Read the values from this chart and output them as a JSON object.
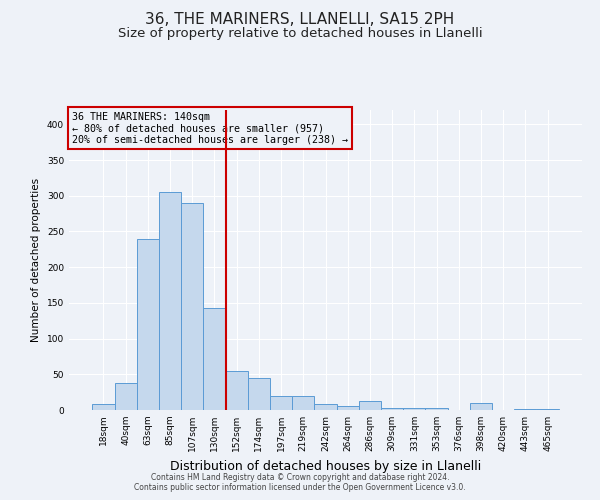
{
  "title": "36, THE MARINERS, LLANELLI, SA15 2PH",
  "subtitle": "Size of property relative to detached houses in Llanelli",
  "xlabel": "Distribution of detached houses by size in Llanelli",
  "ylabel": "Number of detached properties",
  "bar_labels": [
    "18sqm",
    "40sqm",
    "63sqm",
    "85sqm",
    "107sqm",
    "130sqm",
    "152sqm",
    "174sqm",
    "197sqm",
    "219sqm",
    "242sqm",
    "264sqm",
    "286sqm",
    "309sqm",
    "331sqm",
    "353sqm",
    "376sqm",
    "398sqm",
    "420sqm",
    "443sqm",
    "465sqm"
  ],
  "bar_values": [
    8,
    38,
    240,
    305,
    290,
    143,
    55,
    45,
    20,
    20,
    8,
    5,
    13,
    3,
    3,
    3,
    0,
    10,
    0,
    2,
    2
  ],
  "bar_color": "#c5d8ed",
  "bar_edge_color": "#5b9bd5",
  "vline_x": 5.5,
  "vline_color": "#cc0000",
  "annotation_text": "36 THE MARINERS: 140sqm\n← 80% of detached houses are smaller (957)\n20% of semi-detached houses are larger (238) →",
  "annotation_box_color": "#cc0000",
  "ylim": [
    0,
    420
  ],
  "yticks": [
    0,
    50,
    100,
    150,
    200,
    250,
    300,
    350,
    400
  ],
  "footer_line1": "Contains HM Land Registry data © Crown copyright and database right 2024.",
  "footer_line2": "Contains public sector information licensed under the Open Government Licence v3.0.",
  "bg_color": "#eef2f8",
  "grid_color": "#ffffff",
  "title_fontsize": 11,
  "subtitle_fontsize": 9.5,
  "ylabel_fontsize": 7.5,
  "xlabel_fontsize": 9
}
